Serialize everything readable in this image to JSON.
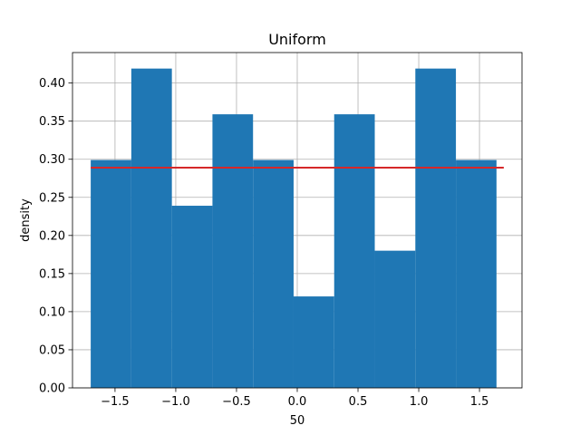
{
  "chart_data": {
    "type": "bar",
    "title": "Uniform",
    "xlabel": "50",
    "ylabel": "density",
    "xlim": [
      -1.85,
      1.85
    ],
    "ylim": [
      0,
      0.44
    ],
    "grid": true,
    "bin_edges": [
      -1.7,
      -1.366,
      -1.032,
      -0.698,
      -0.364,
      -0.03,
      0.304,
      0.638,
      0.972,
      1.306,
      1.64
    ],
    "values": [
      0.299,
      0.419,
      0.239,
      0.359,
      0.299,
      0.12,
      0.359,
      0.18,
      0.419,
      0.299
    ],
    "reference_line": {
      "x": [
        -1.7,
        1.7
      ],
      "y": 0.289
    },
    "xticks": [
      -1.5,
      -1.0,
      -0.5,
      0.0,
      0.5,
      1.0,
      1.5
    ],
    "xtick_labels": [
      "−1.5",
      "−1.0",
      "−0.5",
      "0.0",
      "0.5",
      "1.0",
      "1.5"
    ],
    "yticks": [
      0.0,
      0.05,
      0.1,
      0.15,
      0.2,
      0.25,
      0.3,
      0.35,
      0.4
    ],
    "ytick_labels": [
      "0.00",
      "0.05",
      "0.10",
      "0.15",
      "0.20",
      "0.25",
      "0.30",
      "0.35",
      "0.40"
    ]
  },
  "colors": {
    "bar": "#1f77b4",
    "line": "#d62728",
    "grid": "#b0b0b0",
    "axis": "#000000"
  }
}
